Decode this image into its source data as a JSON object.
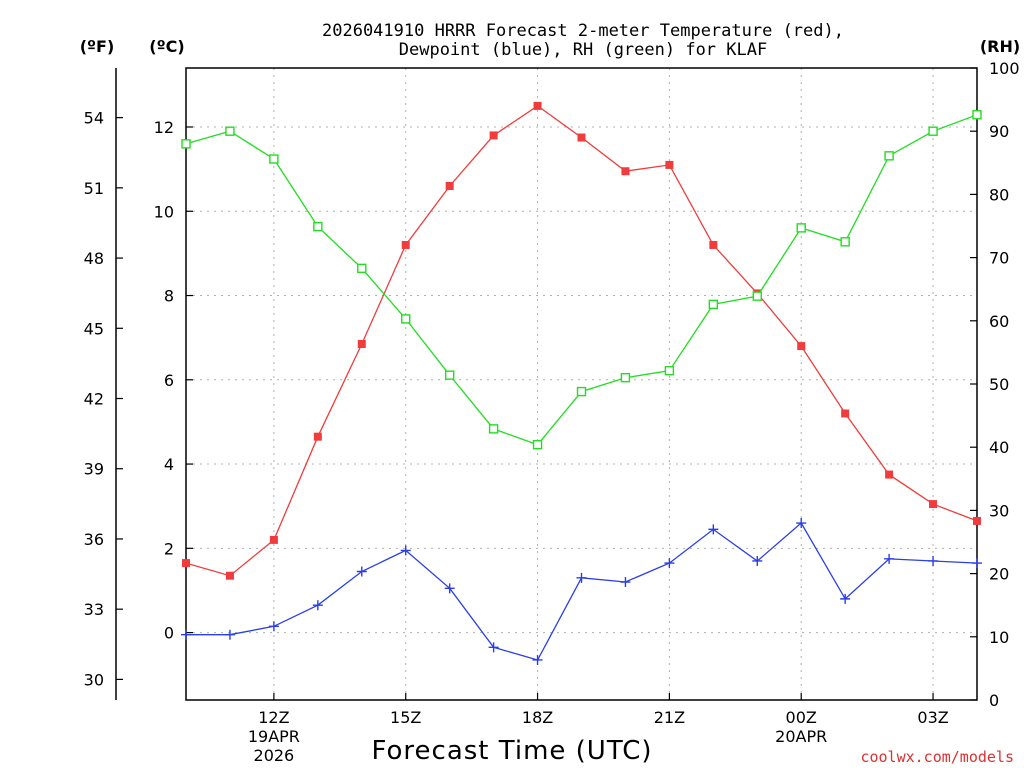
{
  "chart_data": {
    "type": "line",
    "title": "2026041910 HRRR Forecast 2-meter Temperature (red),",
    "title_line2": "Dewpoint (blue), RH (green) for KLAF",
    "xlabel": "Forecast Time (UTC)",
    "watermark": "coolwx.com/models",
    "axis_units": {
      "fahrenheit": "(ºF)",
      "celsius": "(ºC)",
      "rh": "(RH)"
    },
    "x_hours": [
      10,
      11,
      12,
      13,
      14,
      15,
      16,
      17,
      18,
      19,
      20,
      21,
      22,
      23,
      24,
      25,
      26,
      27,
      28
    ],
    "x_range": [
      10,
      28
    ],
    "x_ticks": [
      {
        "hour": 12,
        "label": "12Z",
        "sub1": "19APR",
        "sub2": "2026"
      },
      {
        "hour": 15,
        "label": "15Z"
      },
      {
        "hour": 18,
        "label": "18Z"
      },
      {
        "hour": 21,
        "label": "21Z"
      },
      {
        "hour": 24,
        "label": "00Z",
        "sub1": "20APR"
      },
      {
        "hour": 27,
        "label": "03Z"
      }
    ],
    "c_ticks": [
      "0",
      "2",
      "4",
      "6",
      "8",
      "10",
      "12"
    ],
    "c_range": [
      -1.6,
      13.4
    ],
    "f_ticks": [
      "30",
      "33",
      "36",
      "39",
      "42",
      "45",
      "48",
      "51",
      "54"
    ],
    "rh_ticks": [
      "0",
      "10",
      "20",
      "30",
      "40",
      "50",
      "60",
      "70",
      "80",
      "90",
      "100"
    ],
    "rh_range": [
      0,
      100
    ],
    "series": [
      {
        "name": "Temperature",
        "units": "C",
        "color": "#f03c3c",
        "marker": "filled-square",
        "values": [
          1.65,
          1.35,
          2.2,
          4.65,
          6.85,
          9.2,
          10.6,
          11.8,
          12.5,
          11.75,
          10.95,
          11.1,
          9.2,
          8.05,
          6.8,
          5.2,
          3.75,
          3.05,
          2.65
        ]
      },
      {
        "name": "Dewpoint",
        "units": "C",
        "color": "#2a3ee8",
        "marker": "plus",
        "values": [
          -0.05,
          -0.05,
          0.15,
          0.65,
          1.45,
          1.95,
          1.05,
          -0.35,
          -0.65,
          1.3,
          1.2,
          1.65,
          2.45,
          1.7,
          2.6,
          0.8,
          1.75,
          1.7,
          1.65
        ]
      },
      {
        "name": "RH",
        "units": "%",
        "color": "#22dd22",
        "marker": "open-square",
        "values": [
          88,
          90,
          85.6,
          74.9,
          68.3,
          60.3,
          51.4,
          42.9,
          40.4,
          48.8,
          51,
          52.1,
          62.6,
          63.9,
          74.7,
          72.5,
          86.1,
          90,
          92.6
        ]
      }
    ]
  }
}
